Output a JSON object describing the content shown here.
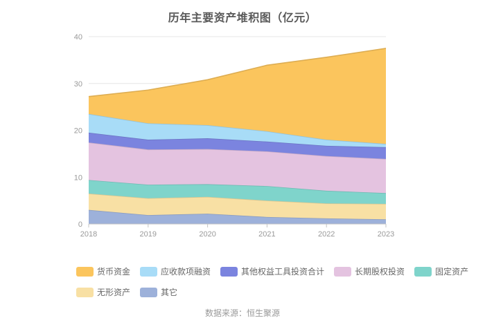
{
  "title": "历年主要资产堆积图（亿元）",
  "source": "数据来源：恒生聚源",
  "chart_data": {
    "type": "area",
    "stacked": true,
    "title": "历年主要资产堆积图（亿元）",
    "x": [
      "2018",
      "2019",
      "2020",
      "2021",
      "2022",
      "2023"
    ],
    "xlabel": "",
    "ylabel": "",
    "ylim": [
      0,
      40
    ],
    "yticks": [
      0,
      10,
      20,
      30,
      40
    ],
    "grid": true,
    "legend_position": "bottom",
    "axis_label_color": "#999999",
    "gridline_color": "#e6e6e6",
    "series": [
      {
        "name": "其它",
        "color": "#9db1da",
        "values": [
          3.0,
          1.9,
          2.2,
          1.5,
          1.2,
          1.0
        ]
      },
      {
        "name": "无形资产",
        "color": "#f8e0a4",
        "values": [
          3.5,
          3.6,
          3.6,
          3.5,
          3.2,
          3.3
        ]
      },
      {
        "name": "固定资产",
        "color": "#7fd4cb",
        "values": [
          2.9,
          2.9,
          2.7,
          3.1,
          2.7,
          2.3
        ]
      },
      {
        "name": "长期股权投资",
        "color": "#e4c3e0",
        "values": [
          8.0,
          7.5,
          7.5,
          7.4,
          7.4,
          7.3
        ]
      },
      {
        "name": "其他权益工具投资合计",
        "color": "#7b84df",
        "values": [
          2.1,
          2.1,
          2.3,
          2.1,
          2.2,
          2.5
        ]
      },
      {
        "name": "应收款项融资",
        "color": "#a8dcf7",
        "values": [
          4.0,
          3.5,
          2.8,
          2.2,
          1.3,
          0.7
        ]
      },
      {
        "name": "货币资金",
        "color": "#fbc55d",
        "values": [
          3.7,
          7.1,
          9.7,
          14.1,
          17.6,
          20.4
        ]
      }
    ],
    "legend_order": [
      "货币资金",
      "应收款项融资",
      "其他权益工具投资合计",
      "长期股权投资",
      "固定资产",
      "无形资产",
      "其它"
    ]
  }
}
